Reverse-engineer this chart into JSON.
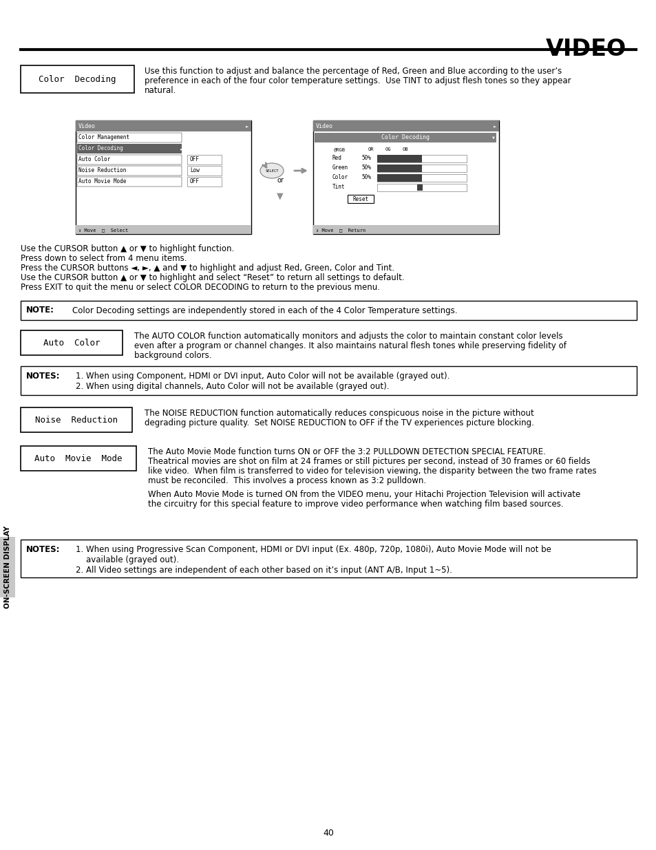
{
  "page_title": "VIDEO",
  "page_number": "40",
  "bg_color": "#ffffff",
  "sidebar_text": "ON-SCREEN DISPLAY",
  "sidebar_bg": "#c8c8c8",
  "color_decoding_desc": [
    "Use this function to adjust and balance the percentage of Red, Green and Blue according to the user’s",
    "preference in each of the four color temperature settings.  Use TINT to adjust flesh tones so they appear",
    "natural."
  ],
  "cursor_instructions": [
    "Use the CURSOR button ▲ or ▼ to highlight function.",
    "Press down to select from 4 menu items.",
    "Press the CURSOR buttons ◄, ►, ▲ and ▼ to highlight and adjust Red, Green, Color and Tint.",
    "Use the CURSOR button ▲ or ▼ to highlight and select “Reset” to return all settings to default.",
    "Press EXIT to quit the menu or select COLOR DECODING to return to the previous menu."
  ],
  "note_cd": "Color Decoding settings are independently stored in each of the 4 Color Temperature settings.",
  "ac_desc": [
    "The AUTO COLOR function automatically monitors and adjusts the color to maintain constant color levels",
    "even after a program or channel changes. It also maintains natural flesh tones while preserving fidelity of",
    "background colors."
  ],
  "notes_ac": [
    "1. When using Component, HDMI or DVI input, Auto Color will not be available (grayed out).",
    "2. When using digital channels, Auto Color will not be available (grayed out)."
  ],
  "nr_desc": [
    "The NOISE REDUCTION function automatically reduces conspicuous noise in the picture without",
    "degrading picture quality.  Set NOISE REDUCTION to OFF if the TV experiences picture blocking."
  ],
  "amm_desc": [
    "The Auto Movie Mode function turns ON or OFF the 3:2 PULLDOWN DETECTION SPECIAL FEATURE.",
    "Theatrical movies are shot on film at 24 frames or still pictures per second, instead of 30 frames or 60 fields",
    "like video.  When film is transferred to video for television viewing, the disparity between the two frame rates",
    "must be reconciled.  This involves a process known as 3:2 pulldown.",
    "",
    "When Auto Movie Mode is turned ON from the VIDEO menu, your Hitachi Projection Television will activate",
    "the circuitry for this special feature to improve video performance when watching film based sources."
  ],
  "notes_amm": [
    "1. When using Progressive Scan Component, HDMI or DVI input (Ex. 480p, 720p, 1080i), Auto Movie Mode will not be",
    "    available (grayed out).",
    "2. All Video settings are independent of each other based on it’s input (ANT A/B, Input 1~5)."
  ]
}
